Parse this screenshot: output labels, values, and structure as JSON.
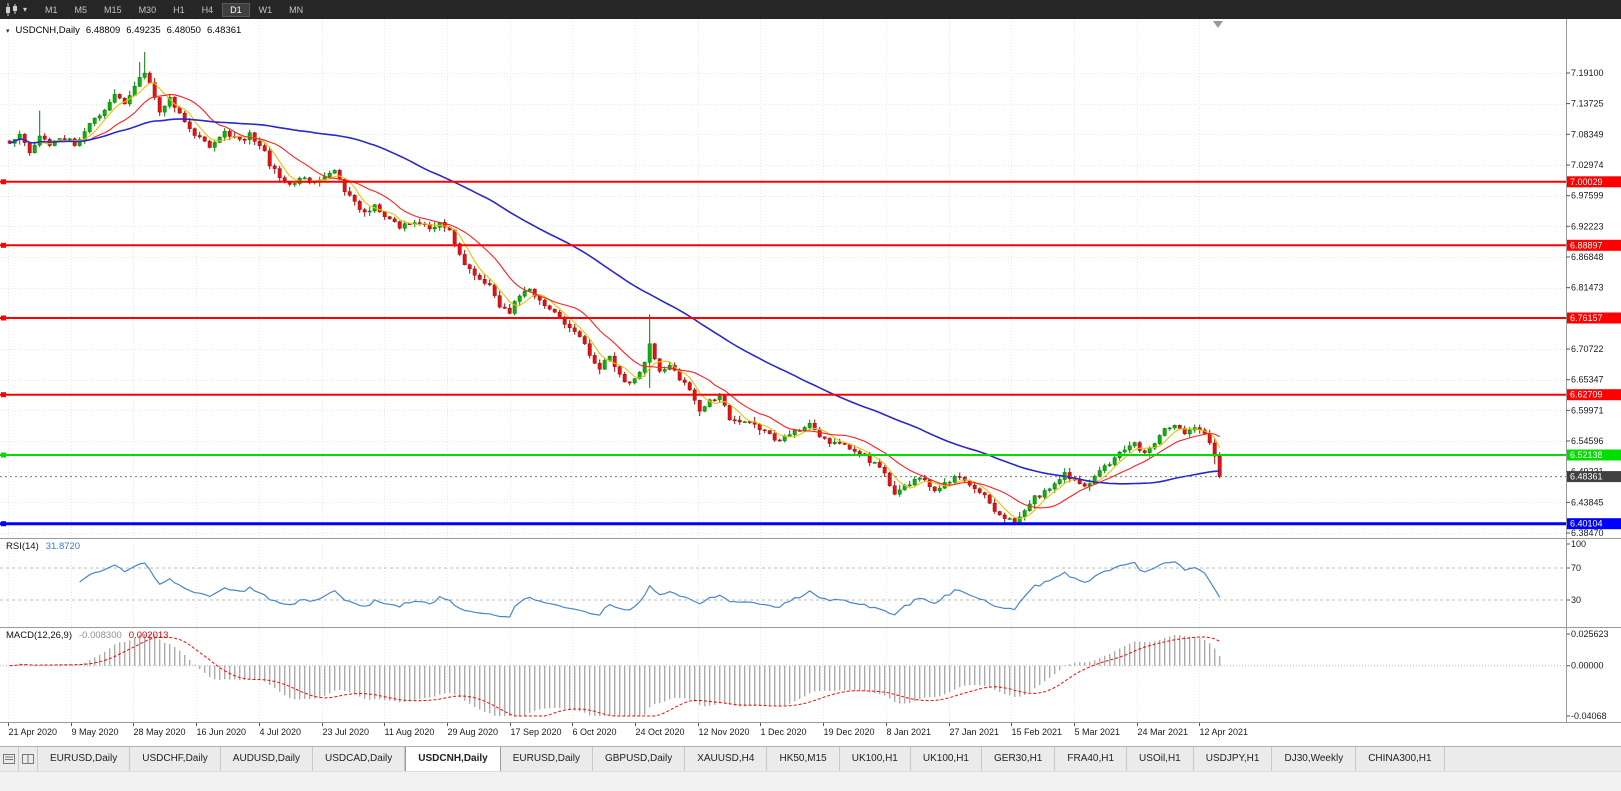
{
  "toolbar": {
    "timeframes": [
      "M1",
      "M5",
      "M15",
      "M30",
      "H1",
      "H4",
      "D1",
      "W1",
      "MN"
    ],
    "active_timeframe": "D1",
    "caret_glyph": "▾"
  },
  "chart_header": {
    "collapse_glyph": "▾",
    "symbol": "USDCNH,Daily",
    "open": "6.48809",
    "high": "6.49235",
    "low": "6.48050",
    "close": "6.48361"
  },
  "rsi_label": {
    "name": "RSI(14)",
    "value": "31.8720"
  },
  "macd_label": {
    "name": "MACD(12,26,9)",
    "value_main": "-0.008300",
    "value_signal": "0.002013"
  },
  "chart_data": {
    "type": "candlestick",
    "symbol": "USDCNH",
    "timeframe": "Daily",
    "ohlc": {
      "open": 6.48809,
      "high": 6.49235,
      "low": 6.4805,
      "close": 6.48361
    },
    "view": {
      "price_top": 7.2856,
      "price_bottom": 6.376
    },
    "y_ticks": [
      "7.19100",
      "7.13725",
      "7.08349",
      "7.02974",
      "6.97599",
      "6.92223",
      "6.86848",
      "6.81473",
      "6.76097",
      "6.70722",
      "6.65347",
      "6.59971",
      "6.54596",
      "6.49221",
      "6.43845",
      "6.38470"
    ],
    "x_labels": [
      "21 Apr 2020",
      "9 May 2020",
      "28 May 2020",
      "16 Jun 2020",
      "4 Jul 2020",
      "23 Jul 2020",
      "11 Aug 2020",
      "29 Aug 2020",
      "17 Sep 2020",
      "6 Oct 2020",
      "24 Oct 2020",
      "12 Nov 2020",
      "1 Dec 2020",
      "19 Dec 2020",
      "8 Jan 2021",
      "27 Jan 2021",
      "15 Feb 2021",
      "5 Mar 2021",
      "24 Mar 2021",
      "12 Apr 2021"
    ],
    "levels": [
      {
        "price": 7.00029,
        "label": "7.00029",
        "color": "#FF0000",
        "text_color": "#ffffff",
        "lw": 2
      },
      {
        "price": 6.88897,
        "label": "6.88897",
        "color": "#FF0000",
        "text_color": "#ffffff",
        "lw": 2
      },
      {
        "price": 6.76157,
        "label": "6.76157",
        "color": "#FF0000",
        "text_color": "#ffffff",
        "lw": 2
      },
      {
        "price": 6.62709,
        "label": "6.62709",
        "color": "#FF0000",
        "text_color": "#ffffff",
        "lw": 2
      },
      {
        "price": 6.52138,
        "label": "6.52138",
        "color": "#00DE00",
        "text_color": "#ffffff",
        "lw": 2
      },
      {
        "price": 6.40104,
        "label": "6.40104",
        "color": "#0000FF",
        "text_color": "#ffffff",
        "lw": 3
      }
    ],
    "current_price": {
      "value": 6.48361,
      "label": "6.48361",
      "bg": "#404040",
      "text_color": "#ffffff"
    },
    "candles": {
      "count": 243,
      "price_path": [
        [
          0,
          7.065
        ],
        [
          2,
          7.088
        ],
        [
          4,
          7.055
        ],
        [
          6,
          7.082
        ],
        [
          8,
          7.062
        ],
        [
          10,
          7.078
        ],
        [
          13,
          7.068
        ],
        [
          16,
          7.1
        ],
        [
          19,
          7.128
        ],
        [
          21,
          7.152
        ],
        [
          23,
          7.138
        ],
        [
          25,
          7.168
        ],
        [
          27,
          7.195
        ],
        [
          28,
          7.178
        ],
        [
          30,
          7.125
        ],
        [
          32,
          7.148
        ],
        [
          34,
          7.118
        ],
        [
          36,
          7.092
        ],
        [
          38,
          7.076
        ],
        [
          40,
          7.062
        ],
        [
          43,
          7.088
        ],
        [
          46,
          7.072
        ],
        [
          48,
          7.082
        ],
        [
          50,
          7.068
        ],
        [
          52,
          7.032
        ],
        [
          54,
          7.006
        ],
        [
          56,
          6.992
        ],
        [
          58,
          7.008
        ],
        [
          61,
          6.998
        ],
        [
          63,
          7.006
        ],
        [
          65,
          7.016
        ],
        [
          67,
          6.985
        ],
        [
          69,
          6.962
        ],
        [
          71,
          6.945
        ],
        [
          73,
          6.956
        ],
        [
          75,
          6.936
        ],
        [
          78,
          6.922
        ],
        [
          81,
          6.932
        ],
        [
          84,
          6.916
        ],
        [
          86,
          6.926
        ],
        [
          88,
          6.912
        ],
        [
          90,
          6.872
        ],
        [
          92,
          6.846
        ],
        [
          94,
          6.832
        ],
        [
          96,
          6.816
        ],
        [
          98,
          6.782
        ],
        [
          100,
          6.772
        ],
        [
          102,
          6.802
        ],
        [
          104,
          6.816
        ],
        [
          106,
          6.792
        ],
        [
          108,
          6.776
        ],
        [
          110,
          6.762
        ],
        [
          112,
          6.746
        ],
        [
          114,
          6.732
        ],
        [
          116,
          6.696
        ],
        [
          118,
          6.676
        ],
        [
          120,
          6.692
        ],
        [
          122,
          6.662
        ],
        [
          124,
          6.646
        ],
        [
          126,
          6.662
        ],
        [
          128,
          6.712
        ],
        [
          130,
          6.666
        ],
        [
          132,
          6.682
        ],
        [
          134,
          6.656
        ],
        [
          136,
          6.632
        ],
        [
          138,
          6.602
        ],
        [
          140,
          6.616
        ],
        [
          142,
          6.626
        ],
        [
          144,
          6.586
        ],
        [
          146,
          6.576
        ],
        [
          148,
          6.582
        ],
        [
          150,
          6.566
        ],
        [
          152,
          6.556
        ],
        [
          154,
          6.546
        ],
        [
          156,
          6.556
        ],
        [
          158,
          6.566
        ],
        [
          160,
          6.576
        ],
        [
          162,
          6.552
        ],
        [
          164,
          6.546
        ],
        [
          166,
          6.541
        ],
        [
          168,
          6.531
        ],
        [
          170,
          6.526
        ],
        [
          172,
          6.512
        ],
        [
          174,
          6.501
        ],
        [
          175,
          6.49
        ],
        [
          176,
          6.468
        ],
        [
          177,
          6.455
        ],
        [
          179,
          6.466
        ],
        [
          181,
          6.481
        ],
        [
          183,
          6.476
        ],
        [
          185,
          6.461
        ],
        [
          187,
          6.471
        ],
        [
          189,
          6.481
        ],
        [
          191,
          6.476
        ],
        [
          193,
          6.461
        ],
        [
          195,
          6.451
        ],
        [
          197,
          6.426
        ],
        [
          199,
          6.411
        ],
        [
          201,
          6.405
        ],
        [
          203,
          6.426
        ],
        [
          205,
          6.446
        ],
        [
          207,
          6.456
        ],
        [
          209,
          6.471
        ],
        [
          211,
          6.491
        ],
        [
          213,
          6.476
        ],
        [
          215,
          6.466
        ],
        [
          217,
          6.481
        ],
        [
          219,
          6.501
        ],
        [
          221,
          6.516
        ],
        [
          223,
          6.531
        ],
        [
          225,
          6.541
        ],
        [
          227,
          6.526
        ],
        [
          229,
          6.546
        ],
        [
          231,
          6.566
        ],
        [
          233,
          6.571
        ],
        [
          235,
          6.561
        ],
        [
          237,
          6.566
        ],
        [
          239,
          6.561
        ],
        [
          240,
          6.546
        ],
        [
          241,
          6.521
        ],
        [
          242,
          6.4836
        ]
      ],
      "wick_overrides": [
        {
          "i": 6,
          "high": 7.125
        },
        {
          "i": 26,
          "high": 7.21
        },
        {
          "i": 27,
          "high": 7.228
        },
        {
          "i": 128,
          "high": 6.768,
          "low": 6.639
        },
        {
          "i": 199,
          "low": 6.401
        },
        {
          "i": 201,
          "low": 6.398
        },
        {
          "i": 241,
          "low": 6.505
        },
        {
          "i": 242,
          "low": 6.4805
        }
      ]
    },
    "moving_averages": [
      {
        "period": 5,
        "color": "#E6C300"
      },
      {
        "period": 13,
        "color": "#FF2020"
      },
      {
        "period": 55,
        "color": "#2929C8"
      }
    ],
    "rsi": {
      "period": 14,
      "current": 31.872,
      "color": "#4a86c8",
      "levels": [
        70,
        30
      ],
      "axis": [
        {
          "label": "100",
          "value": 100
        },
        {
          "label": "70",
          "value": 70
        },
        {
          "label": "30",
          "value": 30
        }
      ]
    },
    "macd": {
      "fast": 12,
      "slow": 26,
      "signal": 9,
      "current_main": -0.0083,
      "current_signal": 0.002013,
      "hist_color": "#ABABAB",
      "signal_color": "#FF0000",
      "range": {
        "max": 0.025623,
        "min": -0.04068
      },
      "axis": [
        {
          "label": "0.025623",
          "value": 0.025623
        },
        {
          "label": "0.00000",
          "value": 0
        },
        {
          "label": "-0.04068",
          "value": -0.04068
        }
      ]
    },
    "colors": {
      "up": "#0FAF0F",
      "up_border": "#067806",
      "down": "#E01414",
      "down_border": "#901010",
      "grid": "#E6E6E6",
      "axis_text": "#1a1a1a",
      "separator": "#9a9a9a"
    }
  },
  "tabs": {
    "items": [
      {
        "label": "EURUSD,Daily",
        "active": false
      },
      {
        "label": "USDCHF,Daily",
        "active": false
      },
      {
        "label": "AUDUSD,Daily",
        "active": false
      },
      {
        "label": "USDCAD,Daily",
        "active": false
      },
      {
        "label": "USDCNH,Daily",
        "active": true
      },
      {
        "label": "EURUSD,Daily",
        "active": false
      },
      {
        "label": "GBPUSD,Daily",
        "active": false
      },
      {
        "label": "XAUUSD,H4",
        "active": false
      },
      {
        "label": "HK50,M15",
        "active": false
      },
      {
        "label": "UK100,H1",
        "active": false
      },
      {
        "label": "UK100,H1",
        "active": false
      },
      {
        "label": "GER30,H1",
        "active": false
      },
      {
        "label": "FRA40,H1",
        "active": false
      },
      {
        "label": "USOil,H1",
        "active": false
      },
      {
        "label": "USDJPY,H1",
        "active": false
      },
      {
        "label": "DJ30,Weekly",
        "active": false
      },
      {
        "label": "CHINA300,H1",
        "active": false
      }
    ]
  }
}
